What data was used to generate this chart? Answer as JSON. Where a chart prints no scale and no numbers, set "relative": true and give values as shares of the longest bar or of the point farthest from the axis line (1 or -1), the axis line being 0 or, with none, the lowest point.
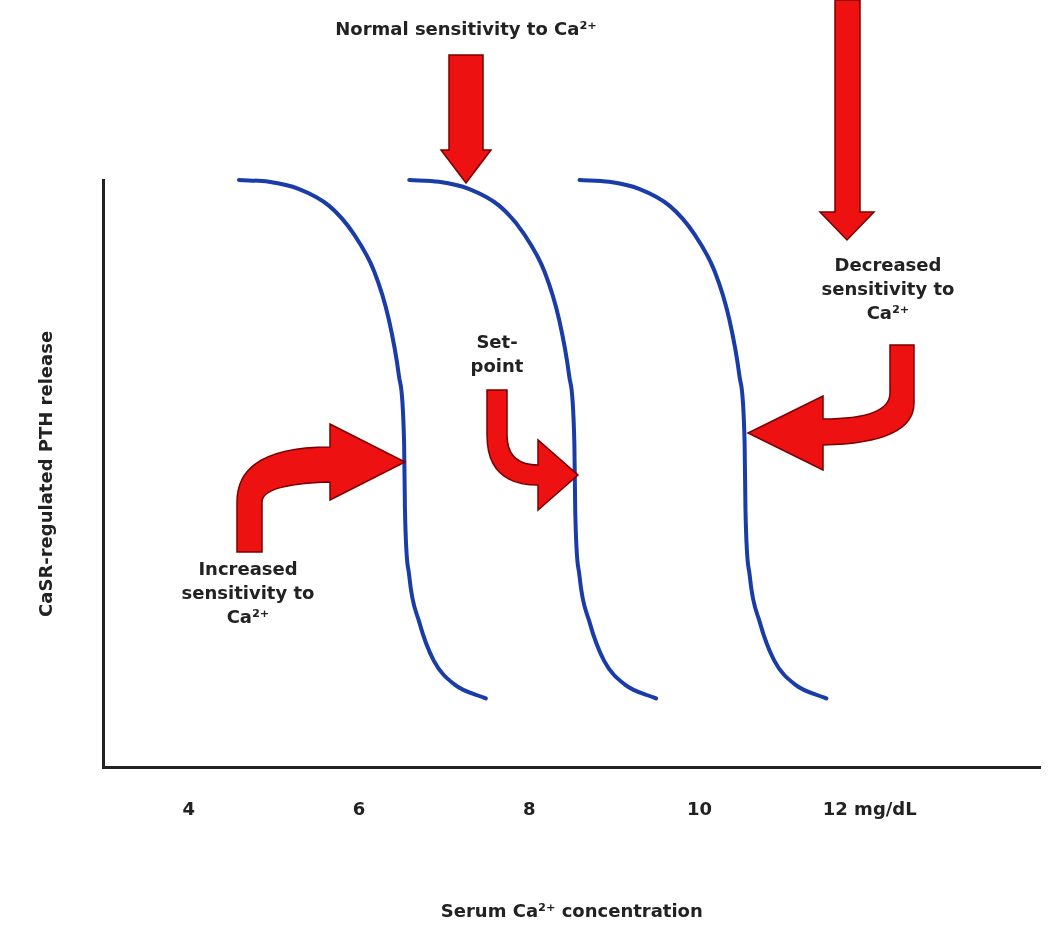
{
  "chart_data": {
    "type": "line",
    "xlabel": "Serum Ca²⁺ concentration",
    "ylabel": "CaSR-regulated PTH release",
    "relative": true,
    "tick_labels": "x",
    "grid": false,
    "legend": false,
    "marker": "none",
    "line_style": "solid",
    "xlim": [
      3,
      14
    ],
    "xticks": [
      4,
      6,
      8,
      10,
      {
        "value": 12,
        "label": "12 mg/dL"
      }
    ],
    "series": [
      {
        "color": "#1a3ca8",
        "x": [
          4.59,
          4.94,
          5.29,
          5.65,
          5.94,
          6.18,
          6.35,
          6.47,
          6.53,
          6.54,
          6.59,
          6.71,
          6.88,
          7.12,
          7.49
        ],
        "values": [
          1,
          0.997,
          0.985,
          0.956,
          0.908,
          0.844,
          0.763,
          0.666,
          0.553,
          0.44,
          0.327,
          0.247,
          0.182,
          0.142,
          0.118
        ]
      },
      {
        "color": "#1a3ca8",
        "x": [
          6.59,
          6.94,
          7.29,
          7.65,
          7.94,
          8.18,
          8.35,
          8.47,
          8.53,
          8.54,
          8.59,
          8.71,
          8.88,
          9.12,
          9.49
        ],
        "values": [
          1,
          0.997,
          0.985,
          0.956,
          0.908,
          0.844,
          0.763,
          0.666,
          0.553,
          0.44,
          0.327,
          0.247,
          0.182,
          0.142,
          0.118
        ]
      },
      {
        "color": "#1a3ca8",
        "x": [
          8.59,
          8.94,
          9.29,
          9.65,
          9.94,
          10.18,
          10.35,
          10.47,
          10.53,
          10.54,
          10.59,
          10.71,
          10.88,
          11.12,
          11.49
        ],
        "values": [
          1,
          0.997,
          0.985,
          0.956,
          0.908,
          0.844,
          0.763,
          0.666,
          0.553,
          0.44,
          0.327,
          0.247,
          0.182,
          0.142,
          0.118
        ]
      }
    ],
    "annotations": [
      "Normal sensitivity to Ca²⁺",
      "Set-point",
      "Increased sensitivity to Ca²⁺",
      "Decreased sensitivity to Ca²⁺"
    ]
  }
}
